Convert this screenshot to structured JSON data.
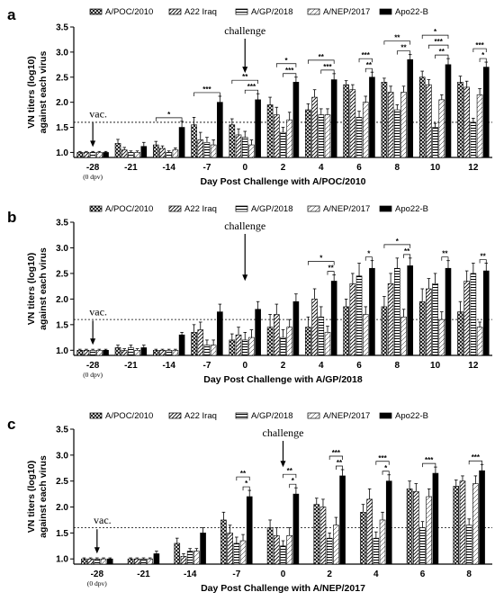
{
  "chart_data": [
    {
      "type": "bar",
      "panel_label": "a",
      "xlabel": "Day Post Challenge with A/POC/2010",
      "ylabel_line1": "VN titers (log10)",
      "ylabel_line2": "against each virus",
      "ylim": [
        0.9,
        3.5
      ],
      "yticks": [
        "1.0",
        "1.5",
        "2.0",
        "2.5",
        "3.0",
        "3.5"
      ],
      "threshold": 1.6,
      "categories": [
        "-28",
        "-21",
        "-14",
        "-7",
        "0",
        "2",
        "4",
        "6",
        "8",
        "10",
        "12"
      ],
      "first_category_sublabel": "(0 dpv)",
      "vac_label": "vac.",
      "vac_index": 0,
      "challenge_label": "challenge",
      "challenge_index": 4,
      "legend": "top",
      "series": [
        {
          "name": "A/POC/2010",
          "values": [
            1.0,
            1.18,
            1.15,
            1.55,
            1.55,
            1.95,
            1.85,
            2.35,
            2.4,
            2.5,
            2.4
          ],
          "errors": [
            0.02,
            0.08,
            0.07,
            0.15,
            0.12,
            0.15,
            0.12,
            0.08,
            0.08,
            0.12,
            0.12
          ]
        },
        {
          "name": "A22 Iraq",
          "values": [
            1.0,
            1.05,
            1.08,
            1.25,
            1.35,
            1.75,
            2.1,
            2.25,
            2.2,
            2.35,
            2.3
          ],
          "errors": [
            0.02,
            0.05,
            0.05,
            0.15,
            0.12,
            0.15,
            0.15,
            0.1,
            0.12,
            0.1,
            0.12
          ]
        },
        {
          "name": "A/GP/2018",
          "values": [
            1.0,
            1.0,
            1.0,
            1.2,
            1.3,
            1.4,
            1.75,
            1.7,
            1.85,
            1.5,
            1.6
          ],
          "errors": [
            0.02,
            0.03,
            0.03,
            0.1,
            0.12,
            0.1,
            0.12,
            0.12,
            0.1,
            0.08,
            0.08
          ]
        },
        {
          "name": "A/NEP/2017",
          "values": [
            1.0,
            1.0,
            1.05,
            1.15,
            1.15,
            1.65,
            1.75,
            2.0,
            2.2,
            2.05,
            2.15
          ],
          "errors": [
            0.02,
            0.03,
            0.04,
            0.1,
            0.1,
            0.15,
            0.12,
            0.12,
            0.12,
            0.1,
            0.12
          ]
        },
        {
          "name": "Apo22-B",
          "values": [
            1.0,
            1.12,
            1.5,
            2.0,
            2.05,
            2.4,
            2.45,
            2.5,
            2.85,
            2.75,
            2.7
          ],
          "errors": [
            0.02,
            0.08,
            0.12,
            0.12,
            0.12,
            0.1,
            0.12,
            0.1,
            0.1,
            0.12,
            0.1
          ]
        }
      ],
      "brackets": [
        {
          "index": 2,
          "rows": [
            {
              "from": 0,
              "to": 4,
              "label": "*"
            }
          ]
        },
        {
          "index": 3,
          "rows": [
            {
              "from": 0,
              "to": 4,
              "label": "***"
            }
          ]
        },
        {
          "index": 4,
          "rows": [
            {
              "from": 0,
              "to": 4,
              "label": "**"
            },
            {
              "from": 2,
              "to": 4,
              "label": "***"
            }
          ]
        },
        {
          "index": 5,
          "rows": [
            {
              "from": 1,
              "to": 4,
              "label": "*"
            },
            {
              "from": 2,
              "to": 4,
              "label": "***"
            }
          ]
        },
        {
          "index": 6,
          "rows": [
            {
              "from": 0,
              "to": 4,
              "label": "**"
            },
            {
              "from": 2,
              "to": 4,
              "label": "***"
            }
          ]
        },
        {
          "index": 7,
          "rows": [
            {
              "from": 2,
              "to": 4,
              "label": "***"
            },
            {
              "from": 3,
              "to": 4,
              "label": "**"
            }
          ]
        },
        {
          "index": 8,
          "rows": [
            {
              "from": 0,
              "to": 4,
              "label": "**"
            },
            {
              "from": 2,
              "to": 4,
              "label": "**"
            }
          ]
        },
        {
          "index": 9,
          "rows": [
            {
              "from": 0,
              "to": 4,
              "label": "*"
            },
            {
              "from": 1,
              "to": 4,
              "label": "***"
            },
            {
              "from": 2,
              "to": 4,
              "label": "**"
            }
          ]
        },
        {
          "index": 10,
          "rows": [
            {
              "from": 2,
              "to": 4,
              "label": "***"
            },
            {
              "from": 3,
              "to": 4,
              "label": "*"
            }
          ]
        }
      ]
    },
    {
      "type": "bar",
      "panel_label": "b",
      "xlabel": "Day Post Challenge with A/GP/2018",
      "ylabel_line1": "VN titers (log10)",
      "ylabel_line2": "against each virus",
      "ylim": [
        0.9,
        3.5
      ],
      "yticks": [
        "1.0",
        "1.5",
        "2.0",
        "2.5",
        "3.0",
        "3.5"
      ],
      "threshold": 1.6,
      "categories": [
        "-28",
        "-21",
        "-14",
        "-7",
        "0",
        "2",
        "4",
        "6",
        "8",
        "10",
        "12"
      ],
      "first_category_sublabel": "(0 dpv)",
      "vac_label": "vac.",
      "vac_index": 0,
      "challenge_label": "challenge",
      "challenge_index": 4,
      "legend": "top",
      "series": [
        {
          "name": "A/POC/2010",
          "values": [
            1.0,
            1.05,
            1.0,
            1.35,
            1.2,
            1.45,
            1.45,
            1.85,
            1.85,
            1.95,
            1.75
          ],
          "errors": [
            0.02,
            0.05,
            0.02,
            0.15,
            0.12,
            0.25,
            0.2,
            0.15,
            0.2,
            0.25,
            0.2
          ]
        },
        {
          "name": "A22 Iraq",
          "values": [
            1.0,
            1.0,
            1.0,
            1.4,
            1.3,
            1.7,
            2.0,
            2.3,
            2.3,
            2.2,
            2.35
          ],
          "errors": [
            0.02,
            0.03,
            0.02,
            0.15,
            0.15,
            0.2,
            0.2,
            0.2,
            0.2,
            0.2,
            0.2
          ]
        },
        {
          "name": "A/GP/2018",
          "values": [
            1.0,
            1.05,
            1.0,
            1.1,
            1.2,
            1.25,
            1.65,
            2.45,
            2.6,
            2.3,
            2.5
          ],
          "errors": [
            0.02,
            0.05,
            0.02,
            0.1,
            0.15,
            0.15,
            0.2,
            0.25,
            0.2,
            0.2,
            0.2
          ]
        },
        {
          "name": "A/NEP/2017",
          "values": [
            1.0,
            1.0,
            1.0,
            1.1,
            1.25,
            1.45,
            1.35,
            1.7,
            1.65,
            1.6,
            1.45
          ],
          "errors": [
            0.02,
            0.03,
            0.02,
            0.1,
            0.15,
            0.15,
            0.12,
            0.15,
            0.15,
            0.15,
            0.1
          ]
        },
        {
          "name": "Apo22-B",
          "values": [
            1.0,
            1.05,
            1.3,
            1.75,
            1.8,
            1.95,
            2.35,
            2.6,
            2.65,
            2.6,
            2.55
          ],
          "errors": [
            0.02,
            0.05,
            0.05,
            0.15,
            0.15,
            0.15,
            0.12,
            0.15,
            0.15,
            0.15,
            0.15
          ]
        }
      ],
      "brackets": [
        {
          "index": 6,
          "rows": [
            {
              "from": 0,
              "to": 4,
              "label": "*"
            },
            {
              "from": 3,
              "to": 4,
              "label": "**"
            }
          ]
        },
        {
          "index": 7,
          "rows": [
            {
              "from": 3,
              "to": 4,
              "label": "*"
            }
          ]
        },
        {
          "index": 8,
          "rows": [
            {
              "from": 0,
              "to": 4,
              "label": "*"
            },
            {
              "from": 3,
              "to": 4,
              "label": "**"
            }
          ]
        },
        {
          "index": 9,
          "rows": [
            {
              "from": 3,
              "to": 4,
              "label": "**"
            }
          ]
        },
        {
          "index": 10,
          "rows": [
            {
              "from": 3,
              "to": 4,
              "label": "**"
            }
          ]
        }
      ]
    },
    {
      "type": "bar",
      "panel_label": "c",
      "xlabel": "Day Post Challenge with A/NEP/2017",
      "ylabel_line1": "VN titers (log10)",
      "ylabel_line2": "against each virus",
      "ylim": [
        0.9,
        3.5
      ],
      "yticks": [
        "1.0",
        "1.5",
        "2.0",
        "2.5",
        "3.0",
        "3.5"
      ],
      "threshold": 1.6,
      "categories": [
        "-28",
        "-21",
        "-14",
        "-7",
        "0",
        "2",
        "4",
        "6",
        "8"
      ],
      "first_category_sublabel": "(0 dpv)",
      "vac_label": "vac.",
      "vac_index": 0,
      "challenge_label": "challenge",
      "challenge_index": 4,
      "legend": "top",
      "series": [
        {
          "name": "A/POC/2010",
          "values": [
            1.0,
            1.0,
            1.3,
            1.75,
            1.6,
            2.05,
            1.9,
            2.35,
            2.4
          ],
          "errors": [
            0.02,
            0.02,
            0.1,
            0.15,
            0.15,
            0.12,
            0.15,
            0.15,
            0.12
          ]
        },
        {
          "name": "A22 Iraq",
          "values": [
            1.0,
            1.0,
            1.05,
            1.5,
            1.45,
            2.0,
            2.15,
            2.3,
            2.5
          ],
          "errors": [
            0.02,
            0.02,
            0.05,
            0.15,
            0.15,
            0.15,
            0.2,
            0.15,
            0.1
          ]
        },
        {
          "name": "A/GP/2018",
          "values": [
            1.0,
            1.0,
            1.15,
            1.3,
            1.25,
            1.4,
            1.4,
            1.6,
            1.65
          ],
          "errors": [
            0.02,
            0.02,
            0.05,
            0.12,
            0.1,
            0.1,
            0.12,
            0.12,
            0.12
          ]
        },
        {
          "name": "A/NEP/2017",
          "values": [
            1.0,
            1.0,
            1.15,
            1.35,
            1.45,
            1.65,
            1.75,
            2.2,
            2.45
          ],
          "errors": [
            0.02,
            0.02,
            0.05,
            0.12,
            0.15,
            0.15,
            0.15,
            0.15,
            0.15
          ]
        },
        {
          "name": "Apo22-B",
          "values": [
            1.0,
            1.1,
            1.5,
            2.2,
            2.25,
            2.6,
            2.5,
            2.65,
            2.7
          ],
          "errors": [
            0.02,
            0.05,
            0.1,
            0.12,
            0.12,
            0.12,
            0.12,
            0.12,
            0.12
          ]
        }
      ],
      "brackets": [
        {
          "index": 3,
          "rows": [
            {
              "from": 2,
              "to": 4,
              "label": "**"
            },
            {
              "from": 3,
              "to": 4,
              "label": "*"
            }
          ]
        },
        {
          "index": 4,
          "rows": [
            {
              "from": 2,
              "to": 4,
              "label": "**"
            },
            {
              "from": 3,
              "to": 4,
              "label": "*"
            }
          ]
        },
        {
          "index": 5,
          "rows": [
            {
              "from": 2,
              "to": 4,
              "label": "***"
            },
            {
              "from": 3,
              "to": 4,
              "label": "**"
            }
          ]
        },
        {
          "index": 6,
          "rows": [
            {
              "from": 2,
              "to": 4,
              "label": "***"
            },
            {
              "from": 3,
              "to": 4,
              "label": "*"
            }
          ]
        },
        {
          "index": 7,
          "rows": [
            {
              "from": 2,
              "to": 4,
              "label": "***"
            }
          ]
        },
        {
          "index": 8,
          "rows": [
            {
              "from": 2,
              "to": 4,
              "label": "***"
            }
          ]
        }
      ]
    }
  ]
}
